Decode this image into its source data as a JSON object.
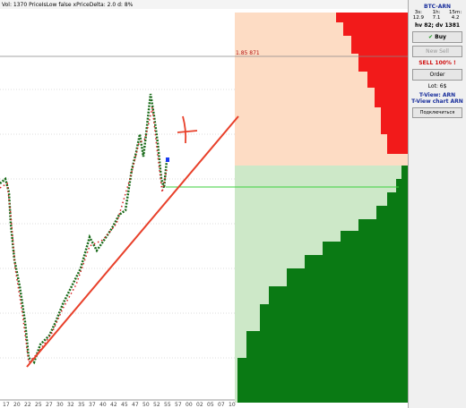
{
  "status_bar": "Vol: 1370 PriceIsLow false xPriceDelta: 2.0 d: 8%",
  "price_label": "1.85 871",
  "x_axis_labels": [
    "17",
    "20",
    "22",
    "25",
    "27",
    "30",
    "32",
    "35",
    "37",
    "40",
    "42",
    "45",
    "47",
    "50",
    "52",
    "55",
    "57",
    "00",
    "02",
    "05",
    "07",
    "10"
  ],
  "panel": {
    "pair": "BTC-ARN",
    "stats": [
      {
        "label": "3s:",
        "value": "12.9"
      },
      {
        "label": "1h:",
        "value": "7.1"
      },
      {
        "label": "15m:",
        "value": "4.2"
      }
    ],
    "volume": "hv 82; dv 1381",
    "buy": "Buy",
    "new_sell": "New Sell",
    "sell_status": "SELL 100% !",
    "order": "Order",
    "lot": "Lot: 6$",
    "tview": "T-View: ARN",
    "tview_chart": "T-View chart ARN",
    "connect": "Подключиться"
  }
}
